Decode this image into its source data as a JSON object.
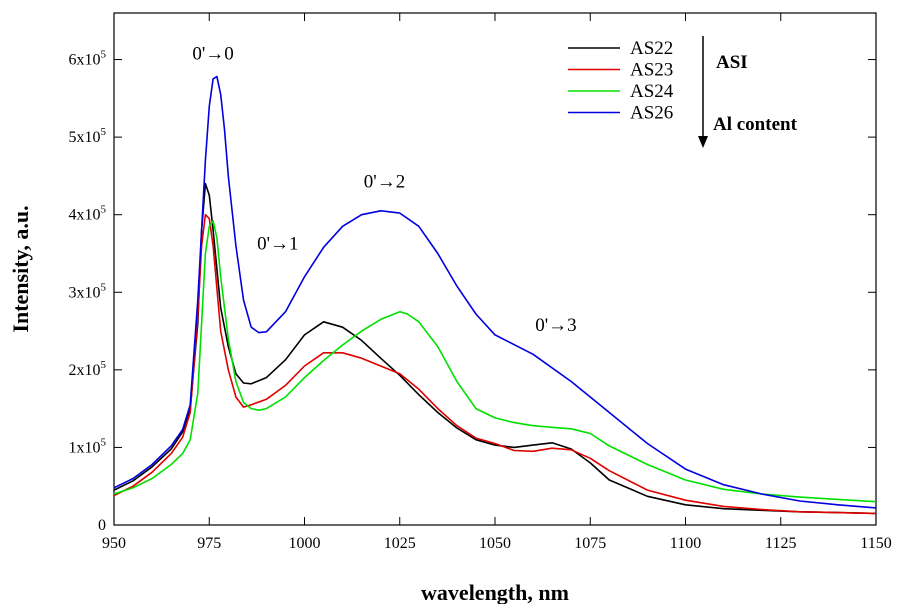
{
  "chart_data": {
    "type": "line",
    "xlabel": "wavelength, nm",
    "ylabel": "Intensity, a.u.",
    "xlim": [
      950,
      1150
    ],
    "ylim": [
      0,
      660000
    ],
    "xticks": [
      950,
      975,
      1000,
      1025,
      1050,
      1075,
      1100,
      1125,
      1150
    ],
    "yticks": [
      {
        "value": 0,
        "label": "0"
      },
      {
        "value": 100000,
        "mant": "1x10",
        "exp": "5"
      },
      {
        "value": 200000,
        "mant": "2x10",
        "exp": "5"
      },
      {
        "value": 300000,
        "mant": "3x10",
        "exp": "5"
      },
      {
        "value": 400000,
        "mant": "4x10",
        "exp": "5"
      },
      {
        "value": 500000,
        "mant": "5x10",
        "exp": "5"
      },
      {
        "value": 600000,
        "mant": "6x10",
        "exp": "5"
      }
    ],
    "grid": false,
    "legend": "top-right",
    "legend_notes": [
      "ASI",
      "Al content"
    ],
    "annotations": [
      {
        "text": "0'→0",
        "x": 976,
        "y": 600000
      },
      {
        "text": "0'→1",
        "x": 993,
        "y": 355000
      },
      {
        "text": "0'→2",
        "x": 1021,
        "y": 435000
      },
      {
        "text": "0'→3",
        "x": 1066,
        "y": 250000
      }
    ],
    "series": [
      {
        "name": "AS22",
        "color": "#000000",
        "x": [
          950,
          955,
          960,
          965,
          968,
          970,
          972,
          973,
          974,
          975,
          976,
          977,
          978,
          980,
          982,
          984,
          986,
          990,
          995,
          1000,
          1005,
          1010,
          1015,
          1020,
          1025,
          1030,
          1035,
          1040,
          1045,
          1050,
          1055,
          1060,
          1065,
          1070,
          1075,
          1080,
          1090,
          1100,
          1110,
          1120,
          1130,
          1140,
          1150
        ],
        "values": [
          45000,
          57000,
          75000,
          98000,
          120000,
          150000,
          260000,
          380000,
          440000,
          425000,
          380000,
          330000,
          280000,
          230000,
          195000,
          183000,
          182000,
          190000,
          213000,
          245000,
          262000,
          255000,
          238000,
          215000,
          193000,
          168000,
          145000,
          125000,
          110000,
          103000,
          100000,
          103000,
          106000,
          98000,
          80000,
          58000,
          37000,
          26000,
          21000,
          19000,
          17000,
          16000,
          15000
        ]
      },
      {
        "name": "AS23",
        "color": "#e00000",
        "x": [
          950,
          955,
          960,
          965,
          968,
          970,
          972,
          973,
          974,
          975,
          976,
          977,
          978,
          980,
          982,
          984,
          986,
          990,
          995,
          1000,
          1005,
          1010,
          1015,
          1020,
          1025,
          1030,
          1035,
          1040,
          1045,
          1050,
          1055,
          1060,
          1065,
          1070,
          1075,
          1080,
          1090,
          1100,
          1110,
          1120,
          1130,
          1140,
          1150
        ],
        "values": [
          38000,
          50000,
          68000,
          92000,
          113000,
          145000,
          270000,
          360000,
          400000,
          395000,
          360000,
          305000,
          250000,
          200000,
          165000,
          152000,
          155000,
          162000,
          180000,
          205000,
          222000,
          222000,
          215000,
          205000,
          195000,
          175000,
          150000,
          128000,
          112000,
          105000,
          96000,
          95000,
          99000,
          97000,
          86000,
          70000,
          45000,
          32000,
          24000,
          20000,
          17000,
          16000,
          15000
        ]
      },
      {
        "name": "AS24",
        "color": "#00e000",
        "x": [
          950,
          955,
          960,
          965,
          968,
          970,
          972,
          973,
          974,
          975,
          976,
          977,
          978,
          980,
          982,
          984,
          986,
          988,
          990,
          995,
          1000,
          1005,
          1010,
          1015,
          1020,
          1025,
          1027,
          1030,
          1035,
          1040,
          1045,
          1050,
          1055,
          1060,
          1065,
          1070,
          1075,
          1080,
          1090,
          1100,
          1110,
          1120,
          1130,
          1140,
          1150
        ],
        "values": [
          40000,
          48000,
          60000,
          78000,
          92000,
          110000,
          170000,
          260000,
          350000,
          385000,
          392000,
          370000,
          320000,
          240000,
          185000,
          158000,
          150000,
          148000,
          150000,
          165000,
          190000,
          212000,
          232000,
          250000,
          265000,
          275000,
          272000,
          262000,
          230000,
          185000,
          150000,
          138000,
          132000,
          128000,
          126000,
          124000,
          118000,
          102000,
          78000,
          58000,
          46000,
          40000,
          36000,
          33000,
          30000
        ]
      },
      {
        "name": "AS26",
        "color": "#0000e0",
        "x": [
          950,
          955,
          960,
          965,
          968,
          970,
          972,
          974,
          975,
          976,
          977,
          978,
          979,
          980,
          982,
          984,
          986,
          988,
          990,
          995,
          1000,
          1005,
          1010,
          1015,
          1020,
          1025,
          1030,
          1035,
          1040,
          1045,
          1050,
          1060,
          1070,
          1080,
          1090,
          1100,
          1110,
          1120,
          1130,
          1140,
          1150
        ],
        "values": [
          48000,
          60000,
          78000,
          102000,
          123000,
          155000,
          290000,
          470000,
          540000,
          575000,
          578000,
          555000,
          510000,
          450000,
          360000,
          290000,
          255000,
          248000,
          249000,
          275000,
          320000,
          358000,
          385000,
          400000,
          405000,
          402000,
          385000,
          350000,
          308000,
          272000,
          245000,
          220000,
          185000,
          145000,
          105000,
          72000,
          52000,
          40000,
          31000,
          26000,
          22000
        ]
      }
    ]
  }
}
